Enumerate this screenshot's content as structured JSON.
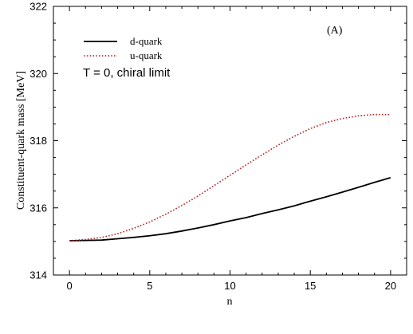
{
  "chart_data": {
    "type": "line",
    "xlabel": "n",
    "ylabel": "Constituent-quark mass [MeV]",
    "xlim": [
      -1,
      21
    ],
    "ylim": [
      314,
      322
    ],
    "xticks": [
      0,
      5,
      10,
      15,
      20
    ],
    "yticks": [
      314,
      316,
      318,
      320,
      322
    ],
    "legend_placement": "top-left",
    "grid": false,
    "annotations": {
      "panel_label": "(A)",
      "condition": "T = 0, chiral limit"
    },
    "series": [
      {
        "name": "d-quark",
        "style": "solid",
        "color": "#000000",
        "x": [
          0,
          1,
          2,
          3,
          4,
          5,
          6,
          7,
          8,
          9,
          10,
          11,
          12,
          13,
          14,
          15,
          16,
          17,
          18,
          19,
          20
        ],
        "y": [
          315.02,
          315.03,
          315.04,
          315.08,
          315.12,
          315.17,
          315.23,
          315.31,
          315.4,
          315.5,
          315.61,
          315.71,
          315.83,
          315.94,
          316.06,
          316.2,
          316.33,
          316.47,
          316.61,
          316.76,
          316.9
        ]
      },
      {
        "name": "u-quark",
        "style": "dotted",
        "color": "#b22222",
        "x": [
          0,
          1,
          2,
          3,
          4,
          5,
          6,
          7,
          8,
          9,
          10,
          11,
          12,
          13,
          14,
          15,
          16,
          17,
          18,
          19,
          20
        ],
        "y": [
          315.02,
          315.06,
          315.12,
          315.23,
          315.39,
          315.58,
          315.81,
          316.07,
          316.35,
          316.66,
          316.97,
          317.28,
          317.58,
          317.87,
          318.13,
          318.36,
          318.54,
          318.66,
          318.74,
          318.78,
          318.78
        ]
      }
    ]
  }
}
